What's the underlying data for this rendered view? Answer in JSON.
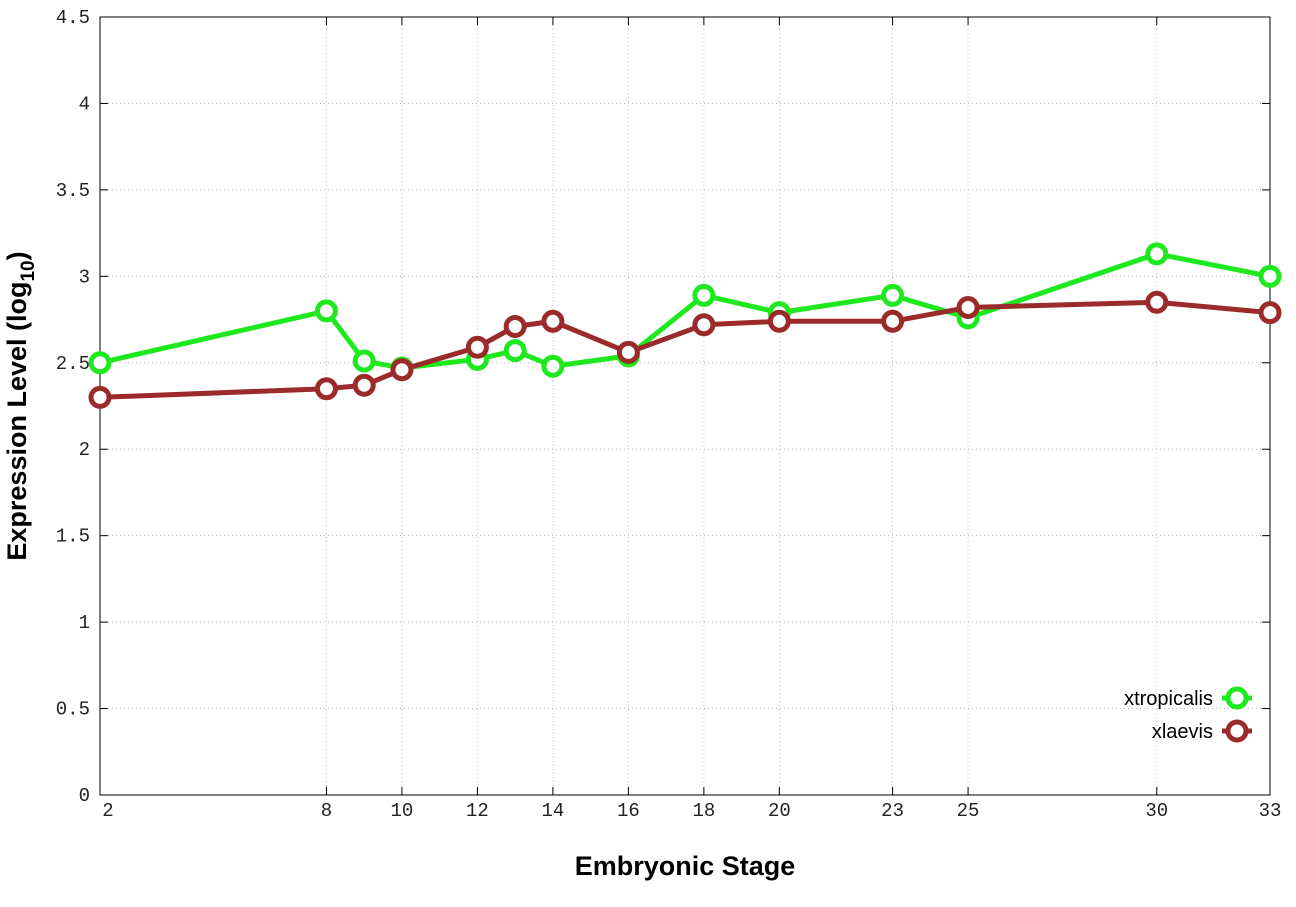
{
  "chart_data": {
    "type": "line",
    "xlabel": "Embryonic Stage",
    "ylabel": "Expression Level (log",
    "ylabel_subscript": "10",
    "ylabel_suffix": ")",
    "xlim": [
      2,
      33
    ],
    "ylim": [
      0,
      4.5
    ],
    "x_ticks": [
      2,
      8,
      10,
      12,
      14,
      16,
      18,
      20,
      23,
      25,
      30,
      33
    ],
    "y_ticks": [
      0,
      0.5,
      1,
      1.5,
      2,
      2.5,
      3,
      3.5,
      4,
      4.5
    ],
    "y_tick_labels": [
      "0",
      "0.5",
      "1",
      "1.5",
      "2",
      "2.5",
      "3",
      "3.5",
      "4",
      "4.5"
    ],
    "grid": true,
    "legend_position": "bottom-right",
    "x": [
      2,
      8,
      9,
      10,
      12,
      13,
      14,
      16,
      18,
      20,
      23,
      25,
      30,
      33
    ],
    "series": [
      {
        "name": "xtropicalis",
        "color": "#1ee81e",
        "values": [
          2.5,
          2.8,
          2.51,
          2.47,
          2.52,
          2.57,
          2.48,
          2.54,
          2.89,
          2.79,
          2.89,
          2.76,
          3.13,
          3.0
        ]
      },
      {
        "name": "xlaevis",
        "color": "#9b2a2a",
        "values": [
          2.3,
          2.35,
          2.37,
          2.46,
          2.59,
          2.71,
          2.74,
          2.56,
          2.72,
          2.74,
          2.74,
          2.82,
          2.85,
          2.79
        ]
      }
    ]
  }
}
